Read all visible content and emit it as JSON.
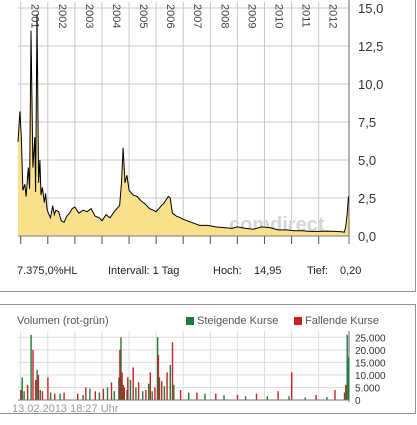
{
  "stats": {
    "wkn": "7.375,0%HL",
    "interval": "Intervall: 1 Tag",
    "high_label": "Hoch:",
    "high_value": "14,95",
    "low_label": "Tief:",
    "low_value": "0,20"
  },
  "volume_panel": {
    "title": "Volumen (rot-grün)",
    "legend_rising": "Steigende Kurse",
    "legend_falling": "Fallende Kurse"
  },
  "watermark": "comdirect",
  "timestamp": "13.02.2013 18:27 Uhr",
  "colors": {
    "line": "#000000",
    "area": "#f8e08c",
    "grid": "#c8c8c8",
    "rising": "#1e7a3c",
    "falling": "#cc1f1f"
  },
  "chart_data": [
    {
      "type": "area",
      "x_unit": "year",
      "xlim": [
        2000.9,
        2013.12
      ],
      "ylim": [
        0,
        15
      ],
      "yticks": [
        0,
        2.5,
        5,
        7.5,
        10,
        12.5,
        15
      ],
      "ytick_labels": [
        "0,0",
        "2,5",
        "5,0",
        "7,5",
        "10,0",
        "12,5",
        "15,0"
      ],
      "years": [
        "2001",
        "2002",
        "2003",
        "2004",
        "2005",
        "2006",
        "2007",
        "2008",
        "2009",
        "2010",
        "2011",
        "2012"
      ],
      "series": [
        {
          "x": [
            2000.9,
            2000.97,
            2001.02,
            2001.08,
            2001.15,
            2001.2,
            2001.28,
            2001.33,
            2001.38,
            2001.45,
            2001.52,
            2001.55,
            2001.6,
            2001.66,
            2001.71,
            2001.75,
            2001.8,
            2001.87,
            2001.92,
            2001.97,
            2002.02,
            2002.1,
            2002.18,
            2002.24,
            2002.3,
            2002.4,
            2002.5,
            2002.6,
            2002.7,
            2002.8,
            2002.9,
            2003.0,
            2003.15,
            2003.3,
            2003.45,
            2003.6,
            2003.75,
            2003.9,
            2004.0,
            2004.15,
            2004.3,
            2004.45,
            2004.55,
            2004.65,
            2004.72,
            2004.78,
            2004.85,
            2004.92,
            2005.0,
            2005.15,
            2005.3,
            2005.45,
            2005.6,
            2005.75,
            2005.9,
            2006.0,
            2006.15,
            2006.3,
            2006.45,
            2006.52,
            2006.6,
            2006.75,
            2006.9,
            2007.0,
            2007.3,
            2007.6,
            2007.9,
            2008.2,
            2008.5,
            2008.8,
            2009.0,
            2009.3,
            2009.6,
            2009.9,
            2010.2,
            2010.5,
            2010.8,
            2011.1,
            2011.4,
            2011.7,
            2012.0,
            2012.3,
            2012.6,
            2012.85,
            2012.95,
            2013.0,
            2013.05,
            2013.1
          ],
          "y": [
            6.2,
            8.2,
            6.5,
            3.0,
            3.4,
            2.6,
            4.5,
            3.1,
            13.5,
            4.5,
            6.5,
            2.9,
            14.6,
            3.5,
            5.0,
            2.7,
            3.2,
            2.2,
            2.8,
            1.8,
            1.5,
            1.2,
            2.0,
            1.4,
            1.7,
            1.6,
            1.0,
            0.9,
            1.3,
            1.5,
            1.8,
            1.9,
            1.5,
            1.7,
            1.6,
            1.8,
            1.3,
            1.2,
            1.0,
            1.4,
            1.2,
            1.6,
            1.8,
            2.0,
            3.5,
            5.8,
            3.5,
            4.0,
            3.0,
            2.7,
            2.6,
            2.3,
            2.1,
            1.8,
            1.7,
            1.6,
            1.9,
            2.2,
            2.6,
            2.5,
            1.5,
            1.3,
            1.2,
            1.1,
            0.9,
            0.7,
            0.7,
            0.6,
            0.55,
            0.5,
            0.6,
            0.5,
            0.45,
            0.6,
            0.55,
            0.4,
            0.4,
            0.35,
            0.35,
            0.3,
            0.3,
            0.32,
            0.3,
            0.28,
            0.25,
            0.6,
            1.4,
            2.6
          ]
        }
      ]
    },
    {
      "type": "bar",
      "x_unit": "year",
      "ylim": [
        0,
        27500
      ],
      "yticks": [
        0,
        5000,
        10000,
        15000,
        20000,
        25000
      ],
      "ytick_labels": [
        "0",
        "5.000",
        "10.000",
        "15.000",
        "20.000",
        "25.000"
      ],
      "series": [
        {
          "name": "Steigende Kurse",
          "x": [
            2001.05,
            2001.12,
            2001.38,
            2001.6,
            2001.72,
            2002.1,
            2002.45,
            2003.3,
            2003.55,
            2003.9,
            2004.2,
            2004.45,
            2004.62,
            2004.7,
            2004.78,
            2004.92,
            2005.05,
            2005.25,
            2005.5,
            2005.72,
            2005.85,
            2006.05,
            2006.12,
            2006.3,
            2006.52,
            2006.65,
            2007.2,
            2007.8,
            2008.5,
            2009.3,
            2010.1,
            2010.9,
            2011.5,
            2012.3,
            2012.95,
            2013.05,
            2013.1
          ],
          "values": [
            9000,
            3500,
            26000,
            12000,
            4000,
            3000,
            2500,
            2000,
            4500,
            3000,
            5000,
            3500,
            9000,
            25000,
            6000,
            4000,
            8000,
            5000,
            3500,
            6500,
            3500,
            25000,
            9000,
            5500,
            14000,
            6000,
            3000,
            2500,
            2000,
            1500,
            1500,
            1500,
            1000,
            1200,
            3000,
            26000,
            17000
          ]
        },
        {
          "name": "Fallende Kurse",
          "x": [
            2001.0,
            2001.25,
            2001.45,
            2001.55,
            2001.65,
            2001.8,
            2002.0,
            2002.25,
            2002.6,
            2003.1,
            2003.4,
            2003.75,
            2004.05,
            2004.35,
            2004.66,
            2004.74,
            2004.82,
            2004.95,
            2005.15,
            2005.35,
            2005.62,
            2005.78,
            2005.95,
            2006.08,
            2006.2,
            2006.4,
            2006.6,
            2006.9,
            2007.5,
            2008.2,
            2009.0,
            2009.7,
            2010.5,
            2011.0,
            2011.9,
            2012.6,
            2013.0
          ],
          "values": [
            4000,
            6000,
            20000,
            8000,
            10000,
            3500,
            9000,
            2500,
            3000,
            2500,
            5000,
            3500,
            4500,
            7000,
            20000,
            11000,
            5000,
            9000,
            13000,
            7000,
            4000,
            11000,
            5000,
            18000,
            7500,
            11000,
            23000,
            4000,
            3000,
            2500,
            2000,
            2500,
            3500,
            11000,
            2000,
            4000,
            6000
          ]
        }
      ]
    }
  ]
}
